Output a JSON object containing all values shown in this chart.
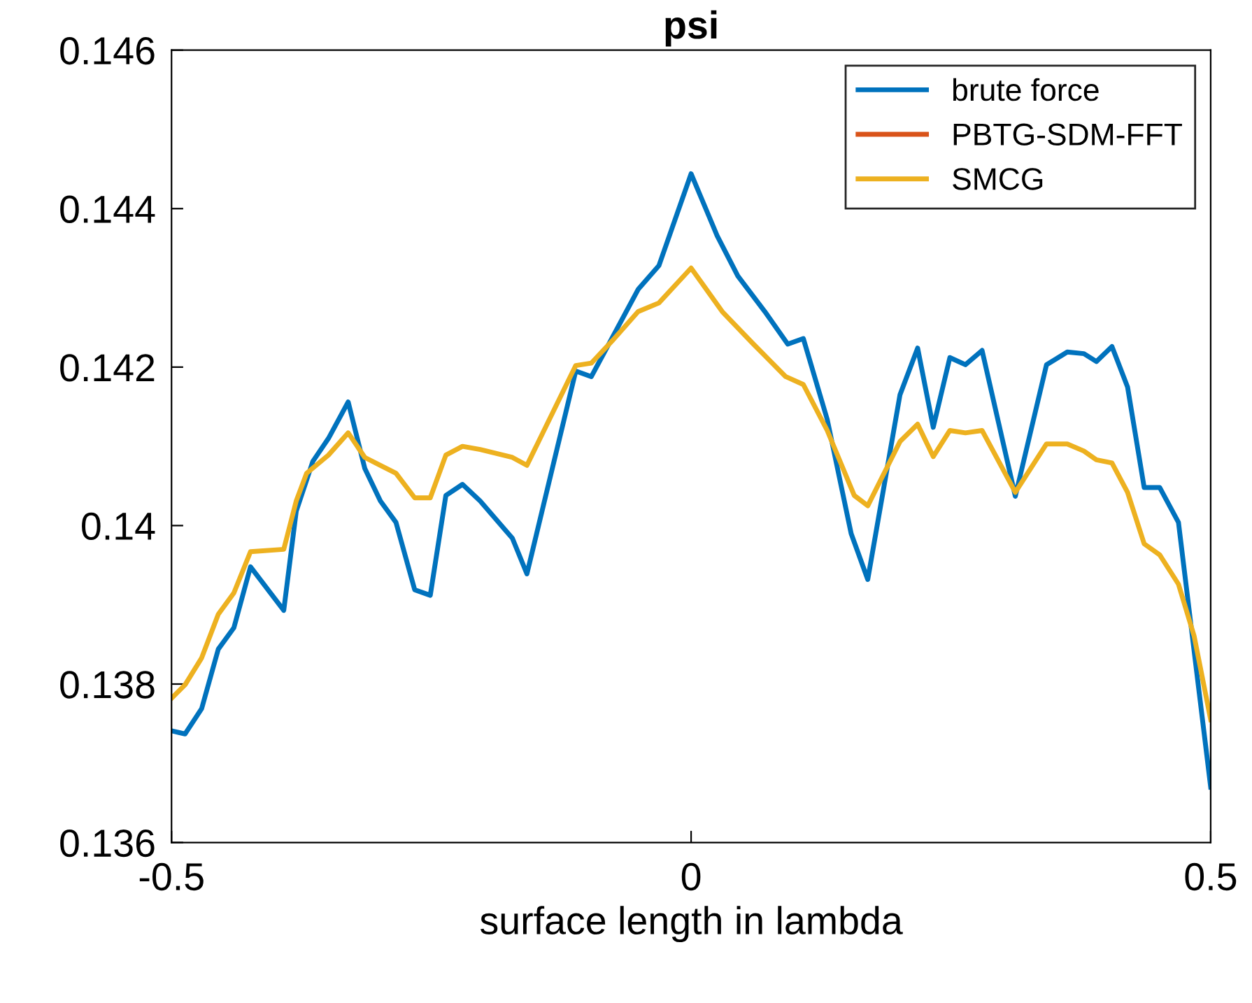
{
  "chart_data": {
    "type": "line",
    "title": "psi",
    "xlabel": "surface length in lambda",
    "xlim": [
      -0.5,
      0.5
    ],
    "xticks": [
      -0.5,
      0,
      0.5
    ],
    "ylim": [
      0.136,
      0.146
    ],
    "yticks": [
      0.136,
      0.138,
      0.14,
      0.142,
      0.144,
      0.146
    ],
    "grid": false,
    "legend": "top right",
    "series": [
      {
        "name": "brute force",
        "color": "#0072bd",
        "x": [
          -0.5,
          -0.487,
          -0.471,
          -0.455,
          -0.44,
          -0.424,
          -0.392,
          -0.38,
          -0.364,
          -0.349,
          -0.33,
          -0.314,
          -0.299,
          -0.284,
          -0.266,
          -0.251,
          -0.236,
          -0.22,
          -0.203,
          -0.172,
          -0.158,
          -0.111,
          -0.096,
          -0.051,
          -0.031,
          0.0,
          0.025,
          0.045,
          0.071,
          0.093,
          0.108,
          0.131,
          0.154,
          0.17,
          0.201,
          0.218,
          0.233,
          0.249,
          0.264,
          0.28,
          0.312,
          0.342,
          0.362,
          0.378,
          0.39,
          0.405,
          0.42,
          0.436,
          0.451,
          0.469,
          0.5
        ],
        "values": [
          0.13741,
          0.13737,
          0.13769,
          0.13844,
          0.13871,
          0.13948,
          0.13893,
          0.14018,
          0.14081,
          0.1411,
          0.14156,
          0.14072,
          0.14031,
          0.14004,
          0.13919,
          0.13912,
          0.14038,
          0.14052,
          0.14031,
          0.13984,
          0.13939,
          0.14195,
          0.14188,
          0.14298,
          0.14328,
          0.14444,
          0.14366,
          0.14315,
          0.1427,
          0.14229,
          0.14236,
          0.14134,
          0.1399,
          0.13932,
          0.14165,
          0.14224,
          0.14124,
          0.14212,
          0.14203,
          0.14221,
          0.14037,
          0.14203,
          0.14219,
          0.14217,
          0.14207,
          0.14226,
          0.14175,
          0.14048,
          0.14048,
          0.14004,
          0.1367
        ]
      },
      {
        "name": "PBTG-SDM-FFT",
        "color": "#d95319"
      },
      {
        "name": "SMCG",
        "color": "#edb120",
        "x": [
          -0.5,
          -0.487,
          -0.471,
          -0.455,
          -0.44,
          -0.424,
          -0.392,
          -0.38,
          -0.37,
          -0.349,
          -0.33,
          -0.314,
          -0.299,
          -0.284,
          -0.266,
          -0.251,
          -0.236,
          -0.22,
          -0.203,
          -0.172,
          -0.158,
          -0.111,
          -0.096,
          -0.076,
          -0.051,
          -0.031,
          0.0,
          0.03,
          0.06,
          0.091,
          0.108,
          0.131,
          0.157,
          0.17,
          0.201,
          0.218,
          0.233,
          0.249,
          0.264,
          0.28,
          0.312,
          0.342,
          0.362,
          0.378,
          0.39,
          0.405,
          0.42,
          0.436,
          0.451,
          0.469,
          0.484,
          0.5
        ],
        "values": [
          0.13782,
          0.13799,
          0.13833,
          0.13888,
          0.13915,
          0.13967,
          0.1397,
          0.14031,
          0.14066,
          0.14089,
          0.14117,
          0.14086,
          0.14076,
          0.14066,
          0.14035,
          0.14035,
          0.14089,
          0.141,
          0.14096,
          0.14086,
          0.14076,
          0.14202,
          0.14205,
          0.14233,
          0.1427,
          0.14281,
          0.14325,
          0.1427,
          0.14229,
          0.14188,
          0.14178,
          0.1412,
          0.14038,
          0.14025,
          0.14106,
          0.14128,
          0.14087,
          0.1412,
          0.14117,
          0.1412,
          0.14042,
          0.14103,
          0.14103,
          0.14094,
          0.14083,
          0.14079,
          0.14042,
          0.13977,
          0.13963,
          0.13926,
          0.13861,
          0.13755
        ]
      }
    ]
  }
}
